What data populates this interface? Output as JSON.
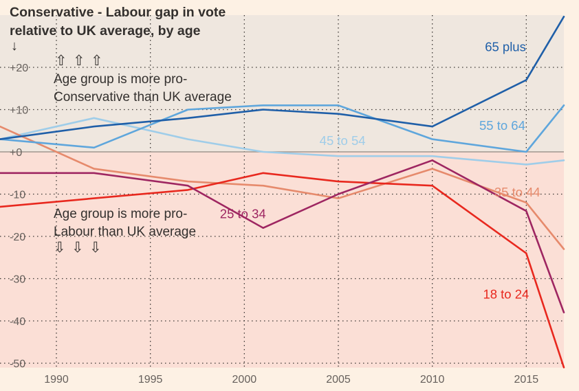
{
  "chart_data": {
    "type": "line",
    "title": "Conservative - Labour gap in vote relative to UK average, by age",
    "title_lines": [
      "Conservative - Labour gap in vote",
      "relative to UK average, by age"
    ],
    "y_unit_marker": "↓",
    "xlim": [
      1987,
      2017
    ],
    "ylim": [
      -51,
      33
    ],
    "x_ticks": [
      1990,
      1995,
      2000,
      2005,
      2010,
      2015
    ],
    "x_tick_labels": [
      "1990",
      "1995",
      "2000",
      "2005",
      "2010",
      "2015"
    ],
    "y_ticks": [
      20,
      10,
      0,
      -10,
      -20,
      -30,
      -40,
      -50
    ],
    "y_tick_labels": [
      "+20",
      "+10",
      "+0",
      "-10",
      "-20",
      "-30",
      "-40",
      "-50"
    ],
    "annotations": {
      "pro_conservative": [
        "Age group is more pro-",
        "Conservative than UK average"
      ],
      "pro_labour": [
        "Age group is more pro-",
        "Labour than UK average"
      ],
      "up_arrow": "⇧",
      "down_arrow": "⇩"
    },
    "colors": {
      "background": "#fdf1e4",
      "upper_shade": "#efe7df",
      "lower_shade": "#fbdfd6",
      "zero_line": "#a0958d",
      "grid": "#3a3633",
      "text": "#33302e"
    },
    "series": [
      {
        "name": "65 plus",
        "color": "#1f5fa8",
        "x": [
          1987,
          1992,
          1997,
          2001,
          2005,
          2010,
          2015,
          2017
        ],
        "y": [
          3,
          6,
          8,
          10,
          9,
          6,
          17,
          32
        ]
      },
      {
        "name": "55 to 64",
        "color": "#5ea6dc",
        "x": [
          1987,
          1992,
          1997,
          2001,
          2005,
          2010,
          2015,
          2017
        ],
        "y": [
          3,
          1,
          10,
          11,
          11,
          3,
          0,
          11
        ]
      },
      {
        "name": "45 to 54",
        "color": "#9fcde9",
        "x": [
          1987,
          1992,
          1997,
          2001,
          2005,
          2010,
          2015,
          2017
        ],
        "y": [
          3,
          8,
          3,
          0,
          -1,
          -1,
          -3,
          -2
        ]
      },
      {
        "name": "35 to 44",
        "color": "#e68a6c",
        "x": [
          1987,
          1992,
          1997,
          2001,
          2005,
          2010,
          2015,
          2017
        ],
        "y": [
          6,
          -4,
          -7,
          -8,
          -11,
          -4,
          -12,
          -23
        ]
      },
      {
        "name": "25 to 34",
        "color": "#9e2661",
        "x": [
          1987,
          1992,
          1997,
          2001,
          2005,
          2010,
          2015,
          2017
        ],
        "y": [
          -5,
          -5,
          -8,
          -18,
          -10,
          -2,
          -14,
          -38
        ]
      },
      {
        "name": "18 to 24",
        "color": "#e8281e",
        "x": [
          1987,
          1992,
          1997,
          2001,
          2005,
          2010,
          2015,
          2017
        ],
        "y": [
          -13,
          -11,
          -9,
          -5,
          -7,
          -8,
          -24,
          -51
        ]
      }
    ]
  }
}
